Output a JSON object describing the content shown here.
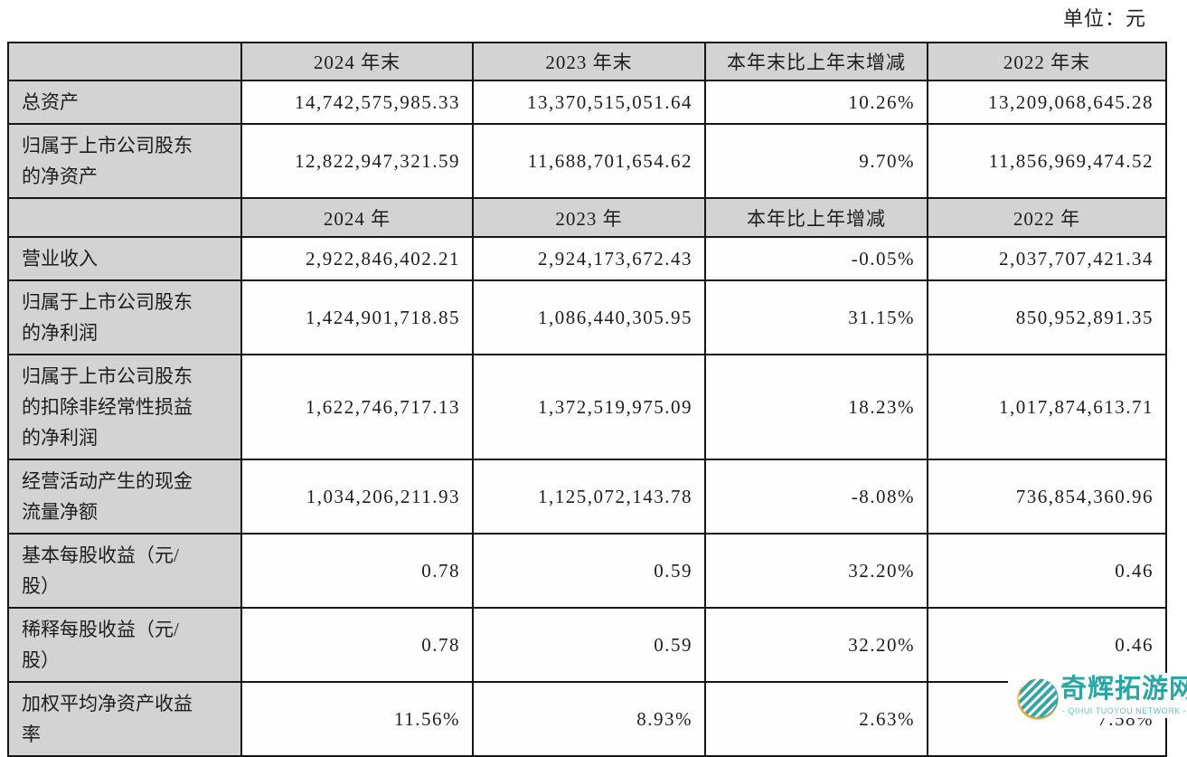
{
  "page": {
    "unit_label": "单位：元"
  },
  "table": {
    "rows": [
      {
        "type": "header",
        "cells": [
          "",
          "2024 年末",
          "2023 年末",
          "本年末比上年末增减",
          "2022 年末"
        ]
      },
      {
        "type": "data",
        "label": "总资产",
        "values": [
          "14,742,575,985.33",
          "13,370,515,051.64",
          "10.26%",
          "13,209,068,645.28"
        ]
      },
      {
        "type": "data",
        "label": "归属于上市公司股东的净资产",
        "values": [
          "12,822,947,321.59",
          "11,688,701,654.62",
          "9.70%",
          "11,856,969,474.52"
        ]
      },
      {
        "type": "header",
        "cells": [
          "",
          "2024 年",
          "2023 年",
          "本年比上年增减",
          "2022 年"
        ]
      },
      {
        "type": "data",
        "label": "营业收入",
        "values": [
          "2,922,846,402.21",
          "2,924,173,672.43",
          "-0.05%",
          "2,037,707,421.34"
        ]
      },
      {
        "type": "data",
        "label": "归属于上市公司股东的净利润",
        "values": [
          "1,424,901,718.85",
          "1,086,440,305.95",
          "31.15%",
          "850,952,891.35"
        ]
      },
      {
        "type": "data",
        "label": "归属于上市公司股东的扣除非经常性损益的净利润",
        "values": [
          "1,622,746,717.13",
          "1,372,519,975.09",
          "18.23%",
          "1,017,874,613.71"
        ]
      },
      {
        "type": "data",
        "label": "经营活动产生的现金流量净额",
        "values": [
          "1,034,206,211.93",
          "1,125,072,143.78",
          "-8.08%",
          "736,854,360.96"
        ]
      },
      {
        "type": "data",
        "label": "基本每股收益（元/股）",
        "values": [
          "0.78",
          "0.59",
          "32.20%",
          "0.46"
        ]
      },
      {
        "type": "data",
        "label": "稀释每股收益（元/股）",
        "values": [
          "0.78",
          "0.59",
          "32.20%",
          "0.46"
        ]
      },
      {
        "type": "data",
        "label": "加权平均净资产收益率",
        "values": [
          "11.56%",
          "8.93%",
          "2.63%",
          "7.58%"
        ]
      }
    ]
  },
  "watermark": {
    "title": "奇辉拓游网",
    "subtitle": "- QIHUI TUOYOU NETWORK -",
    "circle_color": "#2fa8a3",
    "accent_color": "#f2a33c",
    "text_color": "#2aa7a2"
  }
}
